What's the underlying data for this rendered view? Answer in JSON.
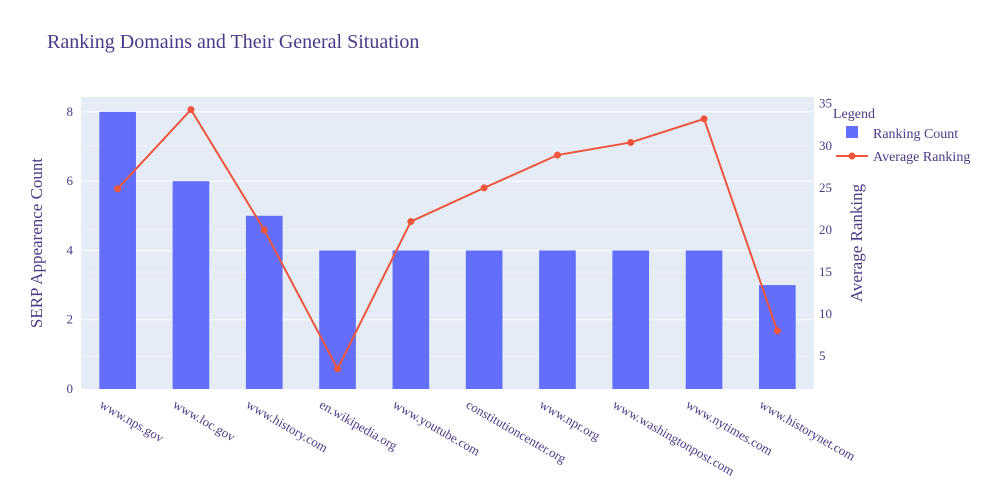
{
  "chart_data": {
    "type": "bar",
    "title": "Ranking Domains and Their General Situation",
    "xlabel": "",
    "ylabel": "SERP Appearence Count",
    "y2label": "Average Ranking",
    "categories": [
      "www.nps.gov",
      "www.loc.gov",
      "www.history.com",
      "en.wikipedia.org",
      "www.youtube.com",
      "constitutioncenter.org",
      "www.npr.org",
      "www.washingtonpost.com",
      "www.nytimes.com",
      "www.historynet.com"
    ],
    "series": [
      {
        "name": "Ranking Count",
        "type": "bar",
        "axis": "y",
        "color": "#636efa",
        "values": [
          8,
          6,
          5,
          4,
          4,
          4,
          4,
          4,
          4,
          3
        ]
      },
      {
        "name": "Average Ranking",
        "type": "line",
        "axis": "y2",
        "color": "#ef553b",
        "values": [
          24.9,
          34.3,
          20,
          3.5,
          21,
          25,
          28.9,
          30.4,
          33.2,
          8
        ]
      }
    ],
    "ylim": [
      0,
      8.43
    ],
    "y2lim": [
      1.1,
      35.8
    ],
    "yticks": [
      0,
      2,
      4,
      6,
      8
    ],
    "y2ticks": [
      5,
      10,
      15,
      20,
      25,
      30,
      35
    ],
    "grid": true,
    "legend": {
      "title": "Legend",
      "placement": "top-right"
    },
    "colors": {
      "plot_bg": "#e5ecf6",
      "grid": "#ffffff",
      "text": "#4b3a87"
    }
  }
}
